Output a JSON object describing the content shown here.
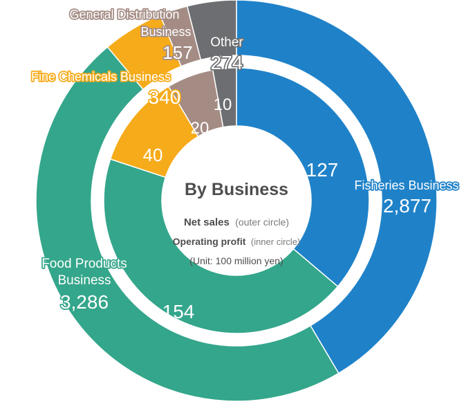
{
  "chart_data": {
    "type": "donut",
    "center": {
      "title": "By Business",
      "line1_bold": "Net sales",
      "line1_light": "(outer circle)",
      "line2_bold": "Operating profit",
      "line2_light": "(inner circle)",
      "line3": "(Unit: 100 million yen)"
    },
    "series": [
      {
        "ring": "outer",
        "values": [
          {
            "category": "Fisheries Business",
            "value": 2877,
            "display": "2,877"
          },
          {
            "category": "Food Products Business",
            "value": 3286,
            "display": "3,286"
          },
          {
            "category": "Fine Chemicals Business",
            "value": 340,
            "display": "340"
          },
          {
            "category": "General Distribution Business",
            "value": 157,
            "display": "157"
          },
          {
            "category": "Other",
            "value": 274,
            "display": "274"
          }
        ]
      },
      {
        "ring": "inner",
        "values": [
          {
            "category": "Fisheries Business",
            "value": 127,
            "display": "127"
          },
          {
            "category": "Food Products Business",
            "value": 154,
            "display": "154"
          },
          {
            "category": "Fine Chemicals Business",
            "value": 40,
            "display": "40"
          },
          {
            "category": "General Distribution Business",
            "value": 20,
            "display": "20"
          },
          {
            "category": "Other",
            "value": 10,
            "display": "10"
          }
        ]
      }
    ],
    "category_labels": {
      "fisheries": [
        "Fisheries Business"
      ],
      "food": [
        "Food Products",
        "Business"
      ],
      "fine": [
        "Fine Chemicals Business"
      ],
      "general": [
        "General Distribution",
        "Business"
      ],
      "other": [
        "Other"
      ]
    },
    "colors": {
      "fisheries": "#1f82c9",
      "food": "#34a68b",
      "fine": "#f6ab1a",
      "general": "#a48c84",
      "other": "#6d6e71"
    }
  }
}
